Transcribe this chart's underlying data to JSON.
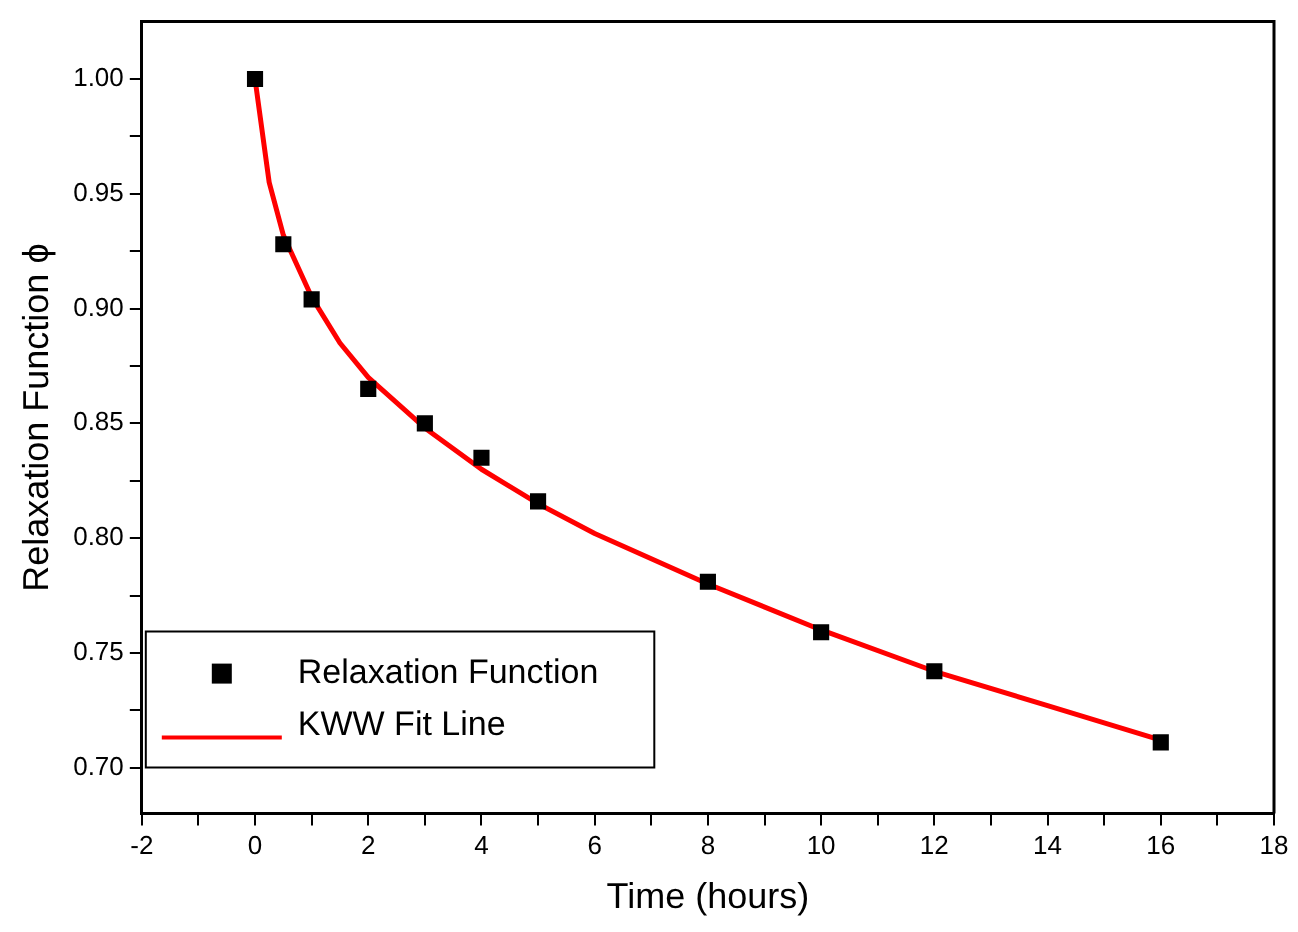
{
  "chart_data": {
    "type": "scatter",
    "xlabel": "Time (hours)",
    "ylabel": "Relaxation Function ϕ",
    "xlim": [
      -2,
      18
    ],
    "ylim": [
      0.68,
      1.025
    ],
    "xticks": [
      -2,
      {
        "value": -1,
        "label": null
      },
      0,
      {
        "value": 1,
        "label": null
      },
      2,
      {
        "value": 3,
        "label": null
      },
      4,
      {
        "value": 5,
        "label": null
      },
      6,
      {
        "value": 7,
        "label": null
      },
      8,
      {
        "value": 9,
        "label": null
      },
      10,
      {
        "value": 11,
        "label": null
      },
      12,
      {
        "value": 13,
        "label": null
      },
      14,
      {
        "value": 15,
        "label": null
      },
      16,
      {
        "value": 17,
        "label": null
      },
      18
    ],
    "yticks": [
      {
        "value": 0.7,
        "label": "0.70"
      },
      {
        "value": 0.725,
        "label": null
      },
      {
        "value": 0.75,
        "label": "0.75"
      },
      {
        "value": 0.775,
        "label": null
      },
      {
        "value": 0.8,
        "label": "0.80"
      },
      {
        "value": 0.825,
        "label": null
      },
      {
        "value": 0.85,
        "label": "0.85"
      },
      {
        "value": 0.875,
        "label": null
      },
      {
        "value": 0.9,
        "label": "0.90"
      },
      {
        "value": 0.925,
        "label": null
      },
      {
        "value": 0.95,
        "label": "0.95"
      },
      {
        "value": 0.975,
        "label": null
      },
      {
        "value": 1,
        "label": "1.00"
      }
    ],
    "legend": "bottom left",
    "series": [
      {
        "name": "Relaxation Function",
        "type": "scatter",
        "marker": "square",
        "color": "#000000",
        "x": [
          0,
          0.5,
          1,
          2,
          3,
          4,
          5,
          8,
          10,
          12,
          16
        ],
        "values": [
          1.0,
          0.928,
          0.904,
          0.865,
          0.85,
          0.835,
          0.816,
          0.781,
          0.759,
          0.742,
          0.711
        ]
      },
      {
        "name": "KWW Fit Line",
        "type": "line",
        "marker": "none",
        "line_style": "solid",
        "color": "#ff0000",
        "x": [
          0,
          0.25,
          0.5,
          1,
          1.5,
          2,
          3,
          4,
          5,
          6,
          8,
          10,
          12,
          14,
          16
        ],
        "values": [
          1.0,
          0.955,
          0.932,
          0.905,
          0.885,
          0.87,
          0.848,
          0.83,
          0.815,
          0.802,
          0.78,
          0.76,
          0.742,
          0.727,
          0.712
        ]
      }
    ]
  }
}
